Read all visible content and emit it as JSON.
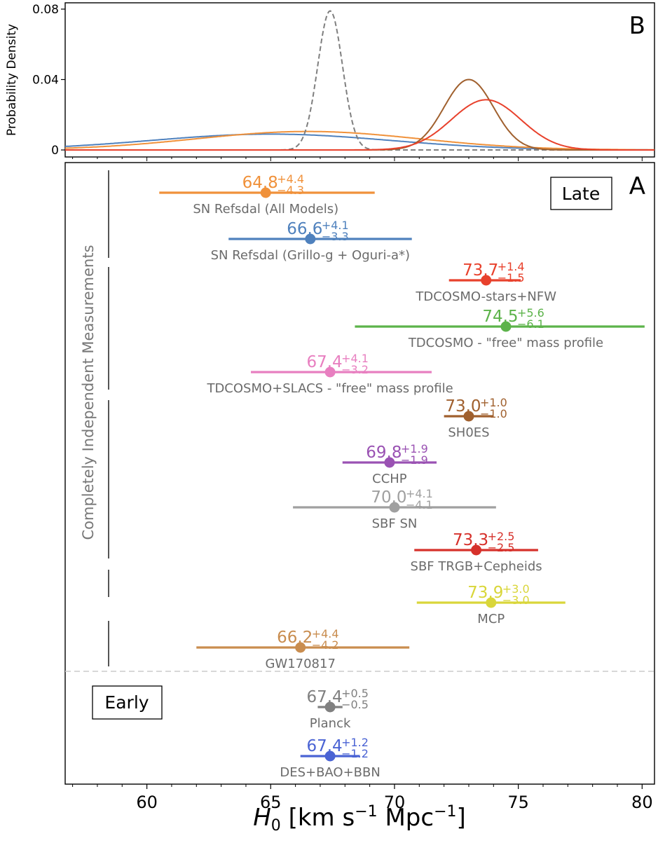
{
  "chart_data": [
    {
      "panel": "B",
      "type": "line",
      "panel_label": "B",
      "ylabel": "Probability Density",
      "yticks": [
        "0",
        "0.04",
        "0.08"
      ],
      "ylim": [
        0,
        0.084
      ],
      "xlim": [
        56.7,
        80.5
      ],
      "series": [
        {
          "color": "#4f81bd",
          "style": "solid",
          "mean": 65.0,
          "sigma": 4.8,
          "peak": 0.009
        },
        {
          "color": "#f0913a",
          "style": "solid",
          "mean": 66.5,
          "sigma": 4.5,
          "peak": 0.0105
        },
        {
          "color": "#7f7f7f",
          "style": "dashed",
          "mean": 67.4,
          "sigma": 0.5,
          "peak": 0.079
        },
        {
          "color": "#a0602e",
          "style": "solid",
          "mean": 73.0,
          "sigma": 1.0,
          "peak": 0.04
        },
        {
          "color": "#e8412c",
          "style": "solid",
          "mean": 73.7,
          "sigma": 1.4,
          "peak": 0.0285
        }
      ]
    },
    {
      "panel": "A",
      "type": "scatter",
      "panel_label": "A",
      "xlabel": "H_0 [km s^-1 Mpc^-1]",
      "xlim": [
        56.7,
        80.5
      ],
      "xticks": [
        60,
        65,
        70,
        75,
        80
      ],
      "late_label": "Late",
      "early_label": "Early",
      "side_label": "Completely Independent Measurements",
      "late": [
        {
          "name": "SN Refsdal (All Models)",
          "value": "64.8",
          "plus": "+4.4",
          "minus": "−4.3",
          "x": 64.8,
          "lo": 60.5,
          "hi": 69.2,
          "color": "#f0913a"
        },
        {
          "name": "SN Refsdal (Grillo-g + Oguri-a*)",
          "value": "66.6",
          "plus": "+4.1",
          "minus": "−3.3",
          "x": 66.6,
          "lo": 63.3,
          "hi": 70.7,
          "color": "#4f81bd"
        },
        {
          "name": "TDCOSMO-stars+NFW",
          "value": "73.7",
          "plus": "+1.4",
          "minus": "−1.5",
          "x": 73.7,
          "lo": 72.2,
          "hi": 75.1,
          "color": "#e8412c"
        },
        {
          "name": "TDCOSMO - \"free\" mass profile",
          "value": "74.5",
          "plus": "+5.6",
          "minus": "−6.1",
          "x": 74.5,
          "lo": 68.4,
          "hi": 80.1,
          "color": "#5cb34a"
        },
        {
          "name": "TDCOSMO+SLACS - \"free\" mass profile",
          "value": "67.4",
          "plus": "+4.1",
          "minus": "−3.2",
          "x": 67.4,
          "lo": 64.2,
          "hi": 71.5,
          "color": "#e87fc0"
        },
        {
          "name": "SH0ES",
          "value": "73.0",
          "plus": "+1.0",
          "minus": "−1.0",
          "x": 73.0,
          "lo": 72.0,
          "hi": 74.0,
          "color": "#a0602e"
        },
        {
          "name": "CCHP",
          "value": "69.8",
          "plus": "+1.9",
          "minus": "−1.9",
          "x": 69.8,
          "lo": 67.9,
          "hi": 71.7,
          "color": "#9a52b3"
        },
        {
          "name": "SBF SN",
          "value": "70.0",
          "plus": "+4.1",
          "minus": "−4.1",
          "x": 70.0,
          "lo": 65.9,
          "hi": 74.1,
          "color": "#a0a0a0"
        },
        {
          "name": "SBF TRGB+Cepheids",
          "value": "73.3",
          "plus": "+2.5",
          "minus": "−2.5",
          "x": 73.3,
          "lo": 70.8,
          "hi": 75.8,
          "color": "#d6312b"
        },
        {
          "name": "MCP",
          "value": "73.9",
          "plus": "+3.0",
          "minus": "−3.0",
          "x": 73.9,
          "lo": 70.9,
          "hi": 76.9,
          "color": "#d9d63a"
        },
        {
          "name": "GW170817",
          "value": "66.2",
          "plus": "+4.4",
          "minus": "−4.2",
          "x": 66.2,
          "lo": 62.0,
          "hi": 70.6,
          "color": "#c98d4f"
        }
      ],
      "early": [
        {
          "name": "Planck",
          "value": "67.4",
          "plus": "+0.5",
          "minus": "−0.5",
          "x": 67.4,
          "lo": 66.9,
          "hi": 67.9,
          "color": "#808080"
        },
        {
          "name": "DES+BAO+BBN",
          "value": "67.4",
          "plus": "+1.2",
          "minus": "−1.2",
          "x": 67.4,
          "lo": 66.2,
          "hi": 68.6,
          "color": "#4a63d4"
        }
      ]
    }
  ]
}
